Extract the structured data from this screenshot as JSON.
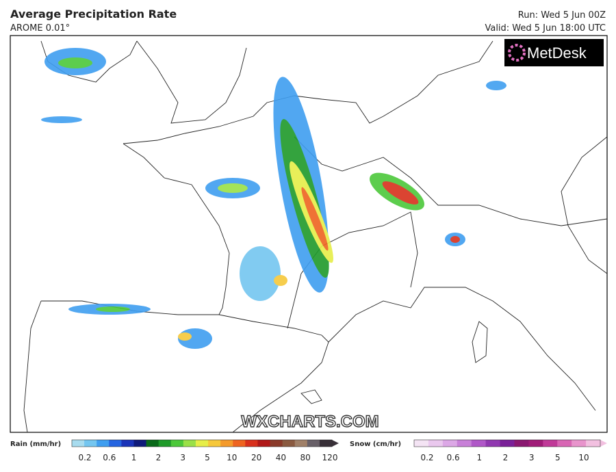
{
  "header": {
    "title": "Average Precipitation Rate",
    "model": "AROME 0.01°",
    "run": "Run: Wed 5 Jun 00Z",
    "valid": "Valid: Wed 5 Jun 18:00 UTC"
  },
  "logo": "MetDesk",
  "watermark": "WXCHARTS.COM",
  "legend": {
    "rain": {
      "label": "Rain (mm/hr)",
      "ticks": [
        "0.2",
        "0.6",
        "1",
        "2",
        "3",
        "5",
        "10",
        "20",
        "40",
        "80",
        "120"
      ],
      "colors": [
        "#a8dcef",
        "#74c6f0",
        "#3f9ef0",
        "#2564e0",
        "#1a33b8",
        "#0f1a7a",
        "#0a6a1a",
        "#1f9a2a",
        "#4cc83a",
        "#9ae048",
        "#e6ee48",
        "#f6c83a",
        "#f49a2a",
        "#ee6420",
        "#d8301c",
        "#b01818",
        "#8a3a2a",
        "#8a5a40",
        "#a08068",
        "#686068",
        "#383038"
      ]
    },
    "snow": {
      "label": "Snow (cm/hr)",
      "ticks": [
        "0.2",
        "0.6",
        "1",
        "2",
        "3",
        "5",
        "10"
      ],
      "colors": [
        "#f4e4f4",
        "#eac8ee",
        "#dca8e6",
        "#c880d8",
        "#b058c8",
        "#9038b0",
        "#7a2098",
        "#8a1870",
        "#a01c78",
        "#c03a98",
        "#d866b4",
        "#e894cc",
        "#f2c0e0"
      ]
    }
  }
}
